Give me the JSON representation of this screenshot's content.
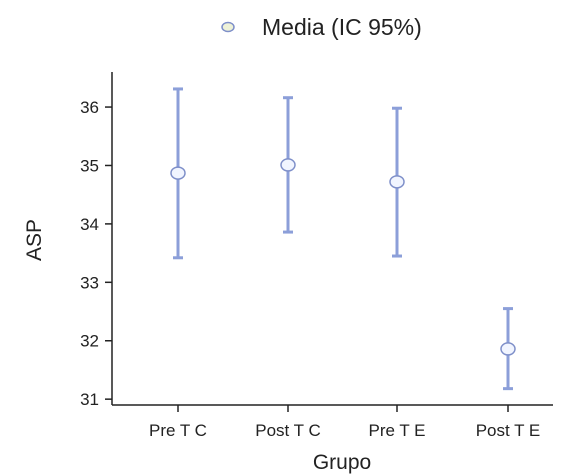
{
  "chart_data": {
    "type": "scatter",
    "title": "",
    "xlabel": "Grupo",
    "ylabel": "ASP",
    "ylim": [
      30.9,
      36.6
    ],
    "yticks": [
      31,
      32,
      33,
      34,
      35,
      36
    ],
    "grid": false,
    "legend_position": "top",
    "categories": [
      "Pre T C",
      "Post T C",
      "Pre T E",
      "Post T E"
    ],
    "series": [
      {
        "name": "Media (IC 95%)",
        "means": [
          34.87,
          35.01,
          34.72,
          31.86
        ],
        "lower": [
          33.42,
          33.86,
          33.45,
          31.18
        ],
        "upper": [
          36.31,
          36.16,
          35.98,
          32.55
        ]
      }
    ],
    "colors": {
      "error_bar": "#8c9fd9",
      "marker_fill": "#f1f5ff",
      "marker_stroke": "#7e8fc9",
      "legend_marker_fill": "#eef2d8",
      "axis": "#222222"
    }
  }
}
